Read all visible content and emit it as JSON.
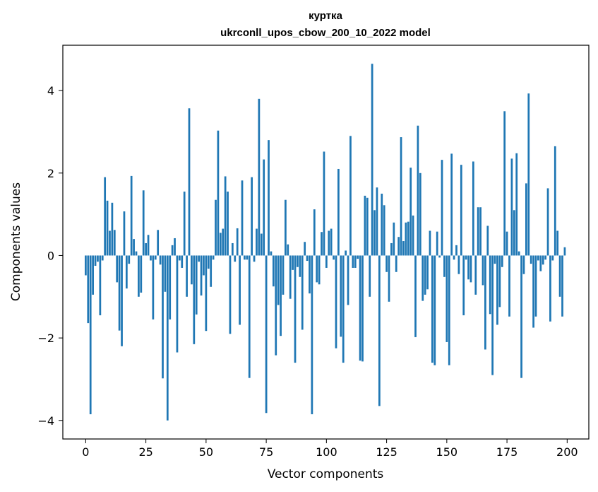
{
  "chart_data": {
    "type": "bar",
    "title": "куртка",
    "subtitle": "ukrconll_upos_cbow_200_10_2022 model",
    "xlabel": "Vector components",
    "ylabel": "Components values",
    "xlim": [
      -9.5,
      209
    ],
    "ylim": [
      -4.45,
      5.1
    ],
    "xticks": [
      0,
      25,
      50,
      75,
      100,
      125,
      150,
      175,
      200
    ],
    "yticks": [
      -4,
      -2,
      0,
      2,
      4
    ],
    "grid": false,
    "bar_color": "#1f77b4",
    "x": [
      0,
      1,
      2,
      3,
      4,
      5,
      6,
      7,
      8,
      9,
      10,
      11,
      12,
      13,
      14,
      15,
      16,
      17,
      18,
      19,
      20,
      21,
      22,
      23,
      24,
      25,
      26,
      27,
      28,
      29,
      30,
      31,
      32,
      33,
      34,
      35,
      36,
      37,
      38,
      39,
      40,
      41,
      42,
      43,
      44,
      45,
      46,
      47,
      48,
      49,
      50,
      51,
      52,
      53,
      54,
      55,
      56,
      57,
      58,
      59,
      60,
      61,
      62,
      63,
      64,
      65,
      66,
      67,
      68,
      69,
      70,
      71,
      72,
      73,
      74,
      75,
      76,
      77,
      78,
      79,
      80,
      81,
      82,
      83,
      84,
      85,
      86,
      87,
      88,
      89,
      90,
      91,
      92,
      93,
      94,
      95,
      96,
      97,
      98,
      99,
      100,
      101,
      102,
      103,
      104,
      105,
      106,
      107,
      108,
      109,
      110,
      111,
      112,
      113,
      114,
      115,
      116,
      117,
      118,
      119,
      120,
      121,
      122,
      123,
      124,
      125,
      126,
      127,
      128,
      129,
      130,
      131,
      132,
      133,
      134,
      135,
      136,
      137,
      138,
      139,
      140,
      141,
      142,
      143,
      144,
      145,
      146,
      147,
      148,
      149,
      150,
      151,
      152,
      153,
      154,
      155,
      156,
      157,
      158,
      159,
      160,
      161,
      162,
      163,
      164,
      165,
      166,
      167,
      168,
      169,
      170,
      171,
      172,
      173,
      174,
      175,
      176,
      177,
      178,
      179,
      180,
      181,
      182,
      183,
      184,
      185,
      186,
      187,
      188,
      189,
      190,
      191,
      192,
      193,
      194,
      195,
      196,
      197,
      198,
      199
    ],
    "values": [
      -0.48,
      -1.64,
      -3.85,
      -0.95,
      -0.25,
      -0.15,
      -1.45,
      -0.12,
      1.9,
      1.33,
      0.6,
      1.28,
      0.62,
      -0.65,
      -1.82,
      -2.2,
      1.07,
      -0.8,
      -0.2,
      1.93,
      0.4,
      0.1,
      -1.0,
      -0.9,
      1.58,
      0.3,
      0.5,
      -0.12,
      -1.55,
      -0.1,
      0.62,
      -0.22,
      -2.98,
      -0.88,
      -4.0,
      -1.55,
      0.25,
      0.42,
      -2.35,
      -0.12,
      -0.3,
      1.55,
      -1.0,
      3.57,
      -0.7,
      -2.15,
      -1.43,
      -0.15,
      -0.97,
      -0.48,
      -1.83,
      -0.32,
      -0.76,
      -0.1,
      1.35,
      3.03,
      0.55,
      0.65,
      1.92,
      1.55,
      -1.9,
      0.3,
      -0.15,
      0.66,
      -1.68,
      1.82,
      -0.1,
      -0.1,
      -2.97,
      1.9,
      -0.15,
      0.65,
      3.8,
      0.53,
      2.33,
      -3.82,
      2.8,
      0.1,
      -0.75,
      -2.42,
      -1.2,
      -1.95,
      -0.95,
      1.35,
      0.27,
      -1.05,
      -0.35,
      -2.6,
      -0.28,
      -0.52,
      -1.8,
      0.33,
      -0.13,
      -0.92,
      -3.85,
      1.12,
      -0.65,
      -0.7,
      0.57,
      2.52,
      -0.3,
      0.6,
      0.65,
      -0.1,
      -2.25,
      2.1,
      -1.97,
      -2.6,
      0.12,
      -1.2,
      2.9,
      -0.3,
      -0.3,
      -0.08,
      -2.55,
      -2.57,
      1.45,
      1.4,
      -1.0,
      4.65,
      1.1,
      1.65,
      -3.65,
      1.5,
      1.22,
      -0.4,
      -1.12,
      0.3,
      0.8,
      -0.4,
      0.45,
      2.87,
      0.35,
      0.8,
      0.82,
      2.13,
      0.97,
      -1.98,
      3.15,
      2.0,
      -1.1,
      -0.95,
      -0.82,
      0.6,
      -2.6,
      -2.66,
      0.58,
      -0.05,
      2.32,
      -0.52,
      -2.1,
      -2.66,
      2.47,
      -0.1,
      0.25,
      -0.45,
      2.2,
      -1.45,
      -0.1,
      -0.58,
      -0.65,
      2.28,
      -0.95,
      1.17,
      1.17,
      -0.72,
      -2.28,
      0.72,
      -1.42,
      -2.9,
      -0.2,
      -1.68,
      -1.25,
      -0.28,
      3.5,
      0.58,
      -1.48,
      2.35,
      1.1,
      2.48,
      0.1,
      -2.97,
      -0.45,
      1.75,
      3.93,
      -0.2,
      -1.75,
      -1.48,
      -0.12,
      -0.38,
      -0.22,
      -0.1,
      1.63,
      -1.6,
      -0.12,
      2.65,
      0.6,
      -1.0,
      -1.48,
      0.2
    ]
  }
}
